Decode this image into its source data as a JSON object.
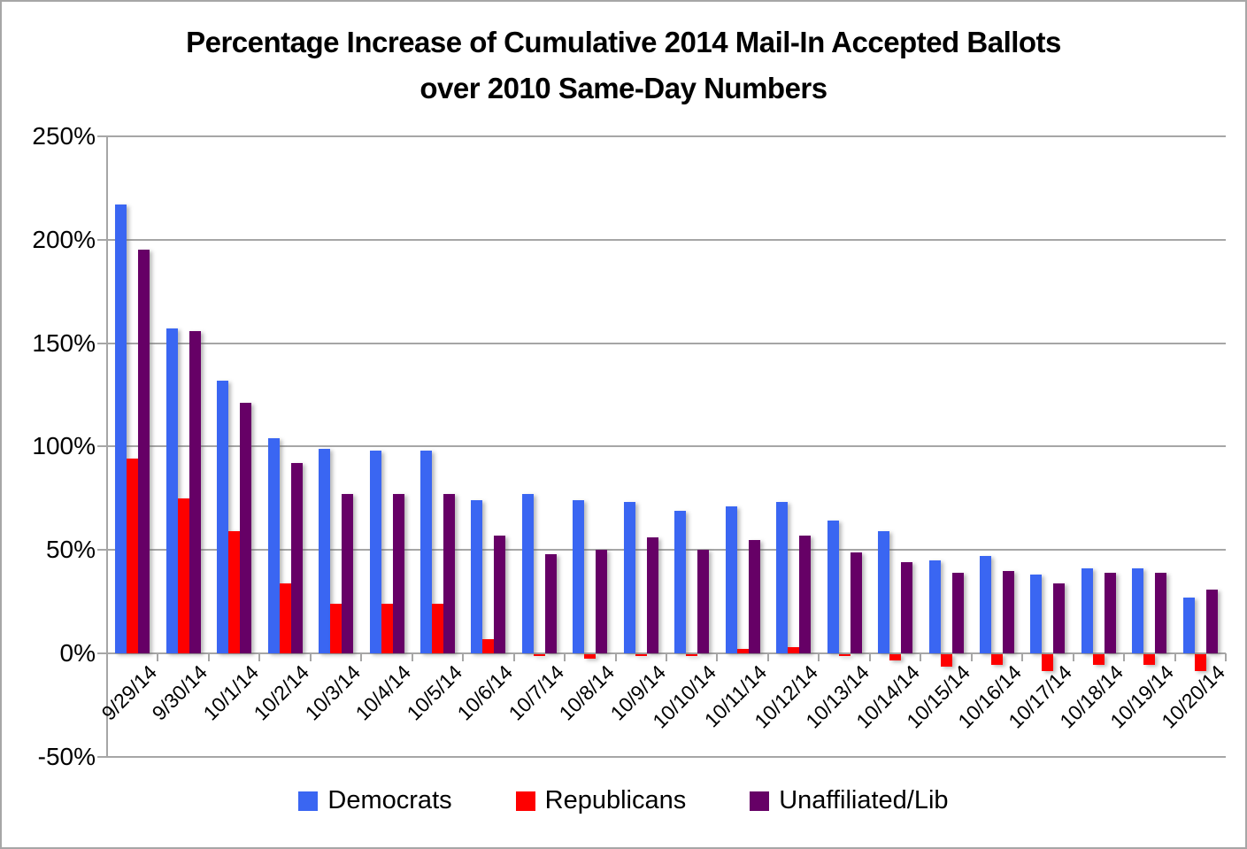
{
  "title": {
    "line1": "Percentage Increase of Cumulative 2014 Mail-In Accepted Ballots",
    "line2": "over 2010 Same-Day Numbers"
  },
  "axis_color": "#a6a6a6",
  "y_axis": {
    "ticks": [
      {
        "value": 250,
        "label": "250%"
      },
      {
        "value": 200,
        "label": "200%"
      },
      {
        "value": 150,
        "label": "150%"
      },
      {
        "value": 100,
        "label": "100%"
      },
      {
        "value": 50,
        "label": "50%"
      },
      {
        "value": 0,
        "label": "0%"
      },
      {
        "value": -50,
        "label": "-50%"
      }
    ]
  },
  "chart_data": {
    "type": "bar",
    "title": "Percentage Increase of Cumulative 2014 Mail-In Accepted Ballots over 2010 Same-Day Numbers",
    "xlabel": "",
    "ylabel": "",
    "ylim": [
      -50,
      250
    ],
    "ytick_step": 50,
    "grid": true,
    "legend_position": "bottom",
    "categories": [
      "9/29/14",
      "9/30/14",
      "10/1/14",
      "10/2/14",
      "10/3/14",
      "10/4/14",
      "10/5/14",
      "10/6/14",
      "10/7/14",
      "10/8/14",
      "10/9/14",
      "10/10/14",
      "10/11/14",
      "10/12/14",
      "10/13/14",
      "10/14/14",
      "10/15/14",
      "10/16/14",
      "10/17/14",
      "10/18/14",
      "10/19/14",
      "10/20/14"
    ],
    "series": [
      {
        "name": "Democrats",
        "color": "#3a66f2",
        "values": [
          217,
          157,
          132,
          104,
          99,
          98,
          98,
          74,
          77,
          74,
          73,
          69,
          71,
          73,
          64,
          59,
          45,
          47,
          38,
          41,
          41,
          27
        ]
      },
      {
        "name": "Republicans",
        "color": "#fe0000",
        "values": [
          94,
          75,
          59,
          34,
          24,
          24,
          24,
          7,
          -1,
          -2,
          -1,
          -1,
          2,
          3,
          -1,
          -3,
          -6,
          -5,
          -8,
          -5,
          -5,
          -8
        ]
      },
      {
        "name": "Unaffiliated/Lib",
        "color": "#660066",
        "values": [
          195,
          156,
          121,
          92,
          77,
          77,
          77,
          57,
          48,
          50,
          56,
          50,
          55,
          57,
          49,
          44,
          39,
          40,
          34,
          39,
          39,
          31
        ]
      }
    ]
  }
}
